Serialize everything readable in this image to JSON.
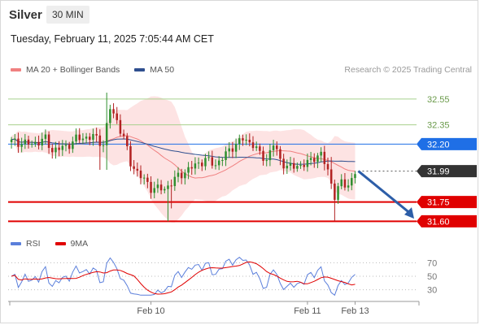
{
  "header": {
    "symbol": "Silver",
    "timeframe": "30 MIN",
    "datetime": "Tuesday, February 11, 2025 7:05:44 AM CET"
  },
  "legend": [
    {
      "label": "MA 20 + Bollinger Bands",
      "color": "#f08080"
    },
    {
      "label": "MA 50",
      "color": "#2f4f8f"
    }
  ],
  "credit": "Research © 2025 Trading Central",
  "rsi_legend": [
    {
      "label": "RSI",
      "color": "#5b7fdb"
    },
    {
      "label": "9MA",
      "color": "#e00000"
    }
  ],
  "colors": {
    "up_candle": "#2f8f2f",
    "down_candle": "#b22222",
    "support": "#e00000",
    "resistance": "#a8d08d",
    "pivot": "#1f6fe6",
    "current": "#333333",
    "ma50": "#2f4f8f",
    "bollinger_fill": "#fde0e0",
    "arrow": "#2d5ea8"
  },
  "chart_data": [
    {
      "type": "candlestick",
      "ylim": [
        31.52,
        32.72
      ],
      "x_ticks": [
        {
          "label": "Feb 10",
          "index": 41
        },
        {
          "label": "Feb 11",
          "index": 87
        },
        {
          "label": "Feb 13",
          "index": 101
        }
      ],
      "levels": [
        {
          "label": "32.55",
          "value": 32.55,
          "kind": "resistance"
        },
        {
          "label": "32.35",
          "value": 32.35,
          "kind": "resistance"
        },
        {
          "label": "32.20",
          "value": 32.2,
          "kind": "pivot"
        },
        {
          "label": "31.99",
          "value": 31.99,
          "kind": "current"
        },
        {
          "label": "31.75",
          "value": 31.75,
          "kind": "support"
        },
        {
          "label": "31.60",
          "value": 31.6,
          "kind": "support"
        }
      ],
      "forecast_arrow": {
        "from": 31.99,
        "to": 31.62
      }
    },
    {
      "type": "line",
      "title": "RSI",
      "ylim": [
        20,
        80
      ],
      "y_ticks": [
        70,
        50,
        30
      ]
    }
  ]
}
